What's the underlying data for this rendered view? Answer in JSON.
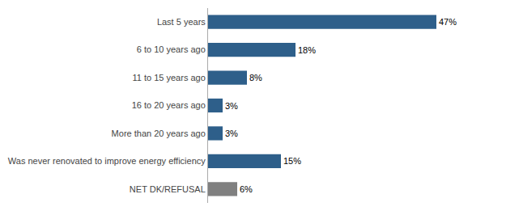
{
  "chart_data": {
    "type": "bar",
    "orientation": "horizontal",
    "categories": [
      "NET DK/REFUSAL",
      "Was never renovated to improve energy efficiency",
      "More than 20 years ago",
      "16 to 20 years ago",
      "11 to 15 years ago",
      "6 to 10 years ago",
      "Last 5 years"
    ],
    "values": [
      6,
      15,
      3,
      3,
      8,
      18,
      47
    ],
    "value_labels": [
      "6%",
      "15%",
      "3%",
      "3%",
      "8%",
      "18%",
      "47%"
    ],
    "colors": [
      "#808080",
      "#2e5f8a",
      "#2e5f8a",
      "#2e5f8a",
      "#2e5f8a",
      "#2e5f8a",
      "#2e5f8a"
    ],
    "xlim": [
      0,
      58
    ],
    "data_labels": true,
    "tick_labels": "y",
    "grid": false
  }
}
